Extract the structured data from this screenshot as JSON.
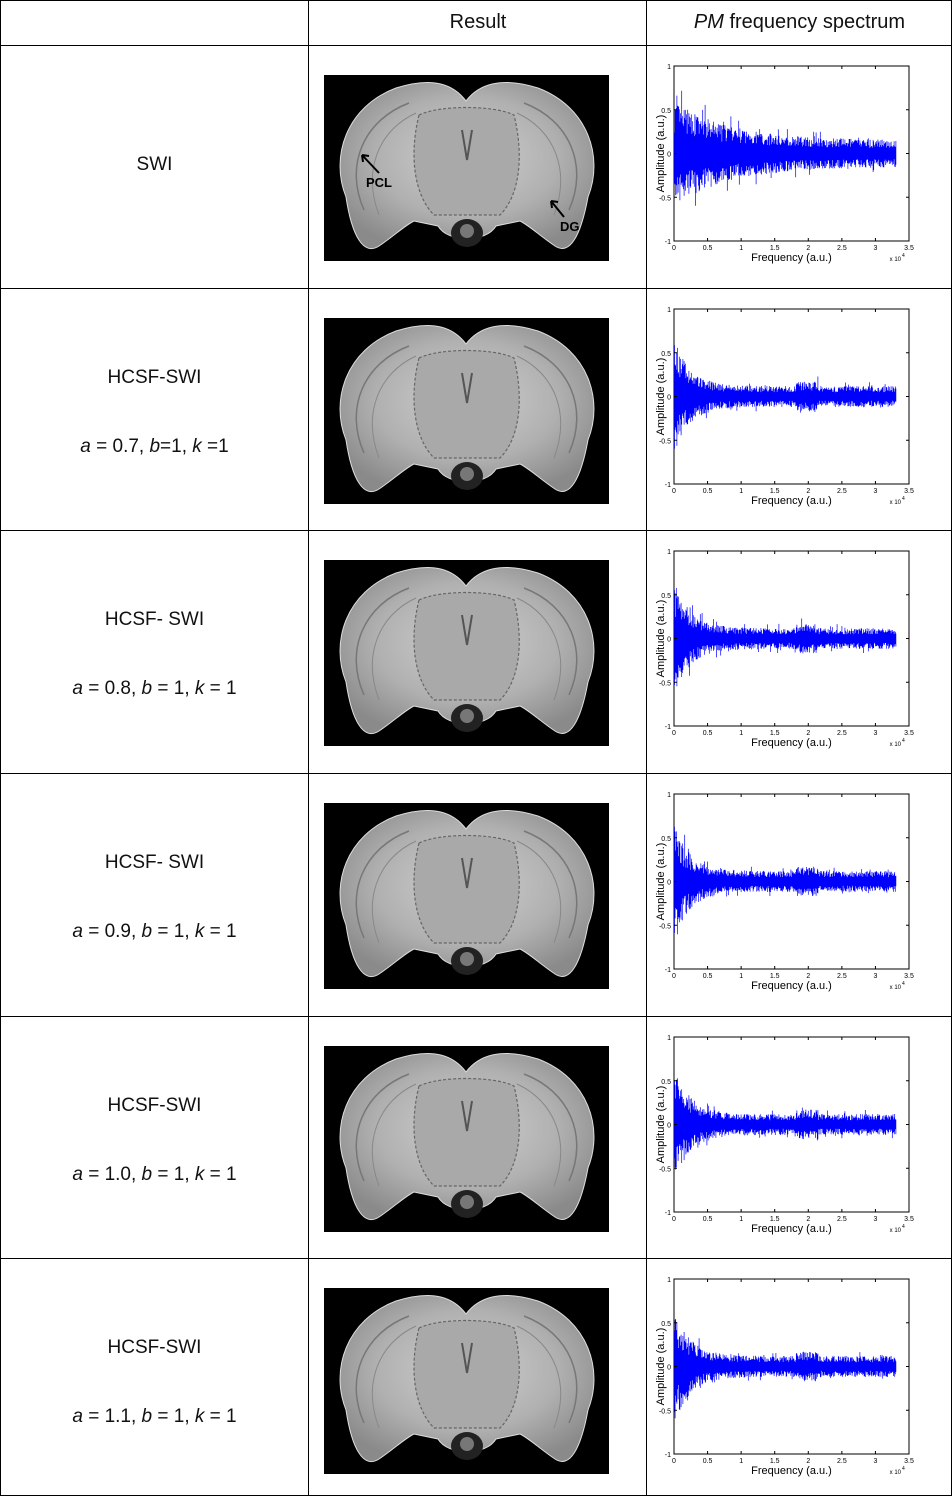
{
  "header": {
    "result": "Result",
    "spectrum": {
      "italic": "PM",
      "rest": " frequency spectrum"
    }
  },
  "rows": [
    {
      "method": "SWI"
    },
    {
      "method": "HCSF-SWI",
      "params": [
        {
          "var": "a",
          "rest": " = 0.7, "
        },
        {
          "var": "b",
          "rest": "=1, "
        },
        {
          "var": "k",
          "rest": " =1"
        }
      ]
    },
    {
      "method": "HCSF- SWI",
      "params": [
        {
          "var": "a",
          "rest": " = 0.8, "
        },
        {
          "var": "b",
          "rest": " = 1, "
        },
        {
          "var": "k",
          "rest": " = 1"
        }
      ]
    },
    {
      "method": "HCSF- SWI",
      "params": [
        {
          "var": "a",
          "rest": " = 0.9, "
        },
        {
          "var": "b",
          "rest": " = 1, "
        },
        {
          "var": "k",
          "rest": " = 1"
        }
      ]
    },
    {
      "method": "HCSF-SWI",
      "params": [
        {
          "var": "a",
          "rest": " = 1.0, "
        },
        {
          "var": "b",
          "rest": " = 1, "
        },
        {
          "var": "k",
          "rest": " = 1"
        }
      ]
    },
    {
      "method": "HCSF-SWI",
      "params": [
        {
          "var": "a",
          "rest": " = 1.1, "
        },
        {
          "var": "b",
          "rest": " = 1, "
        },
        {
          "var": "k",
          "rest": " = 1"
        }
      ]
    }
  ],
  "annotations": [
    "PCL",
    "DG"
  ],
  "spectrum_axes": {
    "ylabel": "Amplitude (a.u.)",
    "xlabel": "Frequency (a.u.)",
    "xticks": [
      0,
      0.5,
      1,
      1.5,
      2,
      2.5,
      3,
      3.5
    ],
    "yticks": [
      -1,
      -0.5,
      0,
      0.5,
      1
    ],
    "xlim": [
      0,
      3.5
    ],
    "ylim": [
      -1,
      1
    ],
    "multiplier": {
      "base": "x 10",
      "exponent": "4"
    }
  }
}
